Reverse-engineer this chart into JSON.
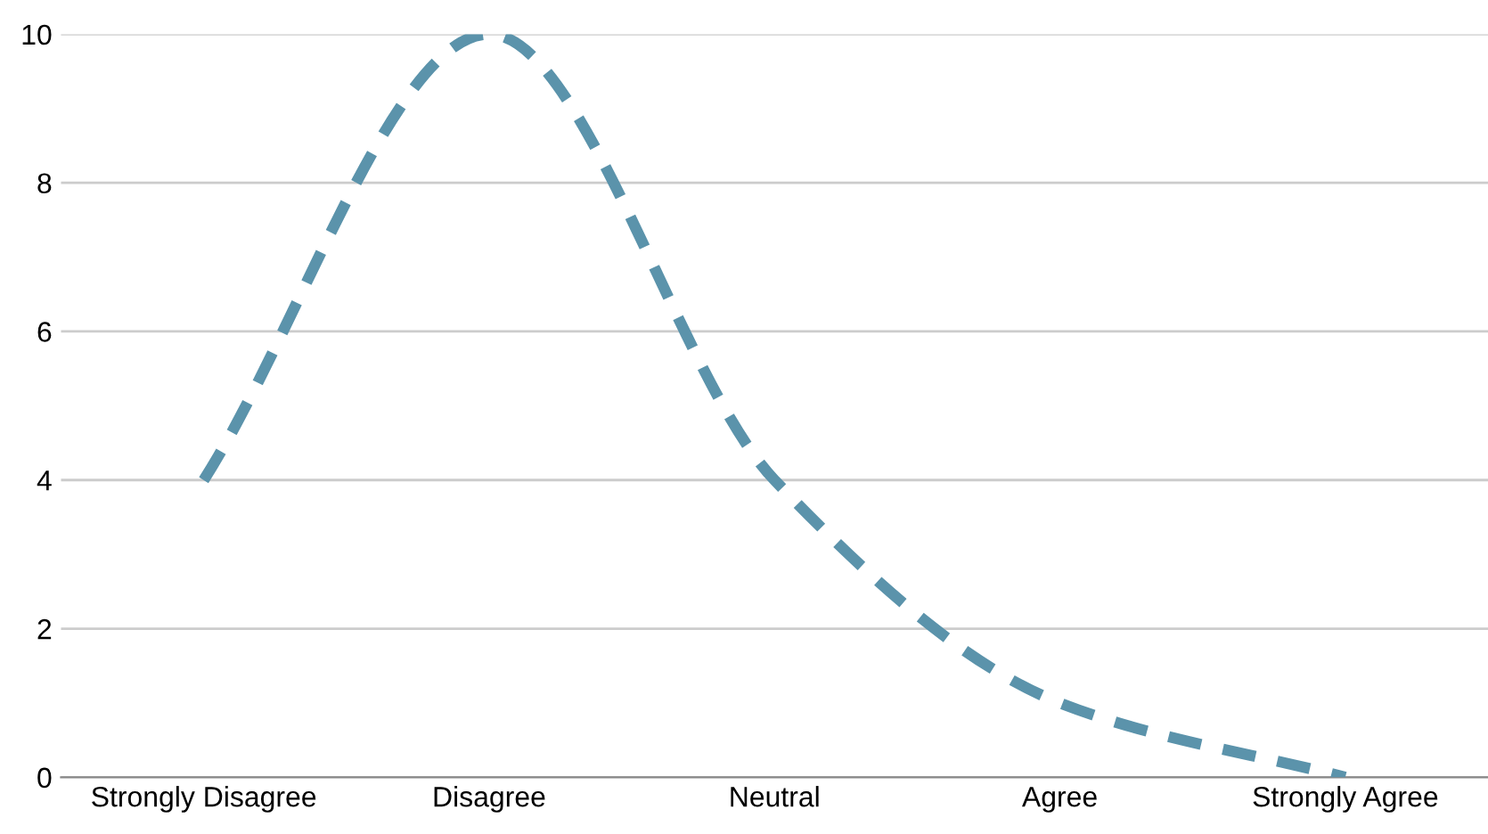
{
  "chart_data": {
    "type": "line",
    "categories": [
      "Strongly Disagree",
      "Disagree",
      "Neutral",
      "Agree",
      "Strongly Agree"
    ],
    "series": [
      {
        "color": "#5b93ab",
        "values": [
          4,
          10,
          4,
          1,
          0
        ]
      }
    ],
    "ylim": [
      0,
      10
    ],
    "yticks": [
      0,
      2,
      4,
      6,
      8,
      10
    ],
    "grid": "y",
    "line_style": "dashed",
    "marker": "none",
    "legend": false
  }
}
